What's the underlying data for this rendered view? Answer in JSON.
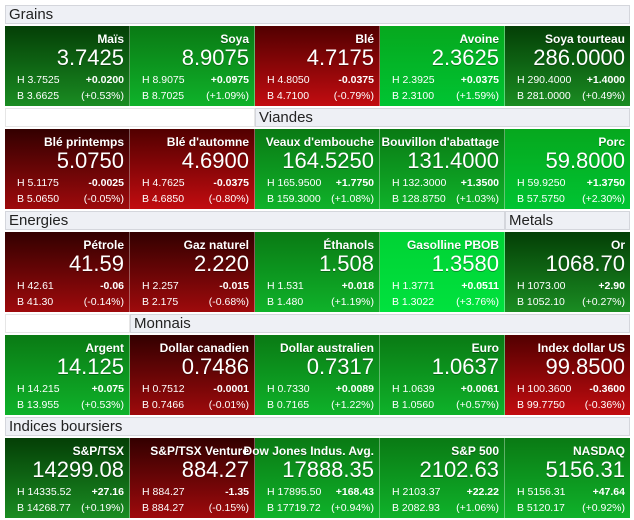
{
  "colors": {
    "dark-green": [
      "#043f06",
      "#1a8c22"
    ],
    "green": [
      "#0a7a14",
      "#0fb22a"
    ],
    "bright-green": [
      "#06a81e",
      "#00c432"
    ],
    "neon-green": [
      "#00d234",
      "#00e23e"
    ],
    "red": [
      "#520000",
      "#c20c10"
    ],
    "dark-red": [
      "#330000",
      "#9e0a0c"
    ]
  },
  "sections": [
    {
      "headers": [
        {
          "label": "Grains",
          "span": 5
        }
      ],
      "tiles": [
        {
          "name": "Maïs",
          "price": "3.7425",
          "high": "H 3.7525",
          "low": "B 3.6625",
          "change": "+0.0200",
          "pct": "(+0.53%)",
          "color": "dark-green"
        },
        {
          "name": "Soya",
          "price": "8.9075",
          "high": "H 8.9075",
          "low": "B 8.7025",
          "change": "+0.0975",
          "pct": "(+1.09%)",
          "color": "green"
        },
        {
          "name": "Blé",
          "price": "4.7175",
          "high": "H 4.8050",
          "low": "B 4.7100",
          "change": "-0.0375",
          "pct": "(-0.79%)",
          "color": "red"
        },
        {
          "name": "Avoine",
          "price": "2.3625",
          "high": "H 2.3925",
          "low": "B 2.3100",
          "change": "+0.0375",
          "pct": "(+1.59%)",
          "color": "bright-green"
        },
        {
          "name": "Soya tourteau",
          "price": "286.0000",
          "high": "H 290.4000",
          "low": "B 281.0000",
          "change": "+1.4000",
          "pct": "(+0.49%)",
          "color": "dark-green"
        }
      ]
    },
    {
      "headers": [
        {
          "label": "",
          "span": 2
        },
        {
          "label": "Viandes",
          "span": 3
        }
      ],
      "tiles": [
        {
          "name": "Blé printemps",
          "price": "5.0750",
          "high": "H 5.1175",
          "low": "B 5.0650",
          "change": "-0.0025",
          "pct": "(-0.05%)",
          "color": "dark-red"
        },
        {
          "name": "Blé d'automne",
          "price": "4.6900",
          "high": "H 4.7625",
          "low": "B 4.6850",
          "change": "-0.0375",
          "pct": "(-0.80%)",
          "color": "red"
        },
        {
          "name": "Veaux d'embouche",
          "price": "164.5250",
          "high": "H 165.9500",
          "low": "B 159.3000",
          "change": "+1.7750",
          "pct": "(+1.08%)",
          "color": "green"
        },
        {
          "name": "Bouvillon d'abattage",
          "price": "131.4000",
          "high": "H 132.3000",
          "low": "B 128.8750",
          "change": "+1.3500",
          "pct": "(+1.03%)",
          "color": "green"
        },
        {
          "name": "Porc",
          "price": "59.8000",
          "high": "H 59.9250",
          "low": "B 57.5750",
          "change": "+1.3750",
          "pct": "(+2.30%)",
          "color": "bright-green"
        }
      ]
    },
    {
      "headers": [
        {
          "label": "Energies",
          "span": 4
        },
        {
          "label": "Metals",
          "span": 1
        }
      ],
      "tiles": [
        {
          "name": "Pétrole",
          "price": "41.59",
          "high": "H 42.61",
          "low": "B 41.30",
          "change": "-0.06",
          "pct": "(-0.14%)",
          "color": "dark-red"
        },
        {
          "name": "Gaz naturel",
          "price": "2.220",
          "high": "H 2.257",
          "low": "B 2.175",
          "change": "-0.015",
          "pct": "(-0.68%)",
          "color": "dark-red"
        },
        {
          "name": "Éthanols",
          "price": "1.508",
          "high": "H 1.531",
          "low": "B 1.480",
          "change": "+0.018",
          "pct": "(+1.19%)",
          "color": "green"
        },
        {
          "name": "Gasolline PBOB",
          "price": "1.3580",
          "high": "H 1.3771",
          "low": "B 1.3022",
          "change": "+0.0511",
          "pct": "(+3.76%)",
          "color": "neon-green"
        },
        {
          "name": "Or",
          "price": "1068.70",
          "high": "H 1073.00",
          "low": "B 1052.10",
          "change": "+2.90",
          "pct": "(+0.27%)",
          "color": "dark-green"
        }
      ]
    },
    {
      "headers": [
        {
          "label": "",
          "span": 1
        },
        {
          "label": "Monnais",
          "span": 4
        }
      ],
      "tiles": [
        {
          "name": "Argent",
          "price": "14.125",
          "high": "H 14.215",
          "low": "B 13.955",
          "change": "+0.075",
          "pct": "(+0.53%)",
          "color": "green"
        },
        {
          "name": "Dollar canadien",
          "price": "0.7486",
          "high": "H 0.7512",
          "low": "B 0.7466",
          "change": "-0.0001",
          "pct": "(-0.01%)",
          "color": "dark-red"
        },
        {
          "name": "Dollar australien",
          "price": "0.7317",
          "high": "H 0.7330",
          "low": "B 0.7165",
          "change": "+0.0089",
          "pct": "(+1.22%)",
          "color": "green"
        },
        {
          "name": "Euro",
          "price": "1.0637",
          "high": "H 1.0639",
          "low": "B 1.0560",
          "change": "+0.0061",
          "pct": "(+0.57%)",
          "color": "green"
        },
        {
          "name": "Index dollar US",
          "price": "99.8500",
          "high": "H 100.3600",
          "low": "B 99.7750",
          "change": "-0.3600",
          "pct": "(-0.36%)",
          "color": "red"
        }
      ]
    },
    {
      "headers": [
        {
          "label": "Indices boursiers",
          "span": 5
        }
      ],
      "tiles": [
        {
          "name": "S&P/TSX",
          "price": "14299.08",
          "high": "H 14335.52",
          "low": "B 14268.77",
          "change": "+27.16",
          "pct": "(+0.19%)",
          "color": "dark-green"
        },
        {
          "name": "S&P/TSX Venture",
          "price": "884.27",
          "high": "H 884.27",
          "low": "B 884.27",
          "change": "-1.35",
          "pct": "(-0.15%)",
          "color": "dark-red"
        },
        {
          "name": "Dow Jones Indus. Avg.",
          "price": "17888.35",
          "high": "H 17895.50",
          "low": "B 17719.72",
          "change": "+168.43",
          "pct": "(+0.94%)",
          "color": "green"
        },
        {
          "name": "S&P 500",
          "price": "2102.63",
          "high": "H 2103.37",
          "low": "B 2082.93",
          "change": "+22.22",
          "pct": "(+1.06%)",
          "color": "green"
        },
        {
          "name": "NASDAQ",
          "price": "5156.31",
          "high": "H 5156.31",
          "low": "B 5120.17",
          "change": "+47.64",
          "pct": "(+0.92%)",
          "color": "green"
        }
      ]
    }
  ]
}
